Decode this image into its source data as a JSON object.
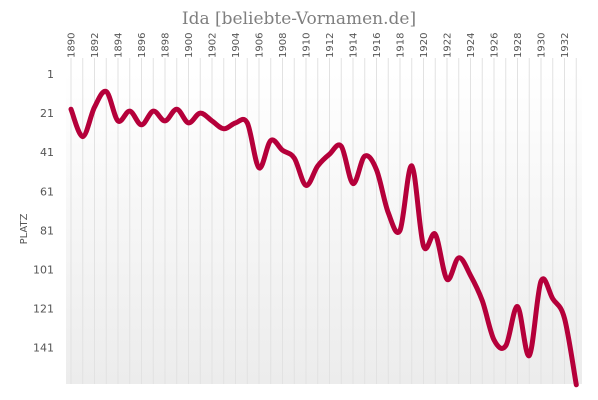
{
  "chart_data": {
    "type": "line",
    "title": "Ida [beliebte-Vornamen.de]",
    "ylabel": "PLATZ",
    "xlabel": "",
    "y_axis_inverted": true,
    "ylim": [
      1,
      160
    ],
    "xlim": [
      1889.5,
      1934
    ],
    "grid": "vertical",
    "x_ticks": [
      1890,
      1892,
      1894,
      1896,
      1898,
      1900,
      1902,
      1904,
      1906,
      1908,
      1910,
      1912,
      1914,
      1916,
      1918,
      1920,
      1922,
      1924,
      1926,
      1928,
      1930,
      1932
    ],
    "y_ticks": [
      1,
      21,
      41,
      61,
      81,
      101,
      121,
      141
    ],
    "series": [
      {
        "color": "#b5003a",
        "x": [
          1890,
          1891,
          1892,
          1893,
          1894,
          1895,
          1896,
          1897,
          1898,
          1899,
          1900,
          1901,
          1902,
          1903,
          1904,
          1905,
          1906,
          1907,
          1908,
          1909,
          1910,
          1911,
          1912,
          1913,
          1914,
          1915,
          1916,
          1917,
          1918,
          1919,
          1920,
          1921,
          1922,
          1923,
          1924,
          1925,
          1926,
          1927,
          1928,
          1929,
          1930,
          1931,
          1932,
          1933
        ],
        "values": [
          19,
          33,
          18,
          10,
          25,
          20,
          27,
          20,
          25,
          19,
          26,
          21,
          25,
          29,
          26,
          26,
          49,
          35,
          40,
          44,
          58,
          48,
          42,
          38,
          57,
          43,
          50,
          72,
          81,
          48,
          89,
          83,
          106,
          95,
          104,
          117,
          137,
          140,
          120,
          145,
          107,
          116,
          126,
          160
        ]
      }
    ]
  }
}
